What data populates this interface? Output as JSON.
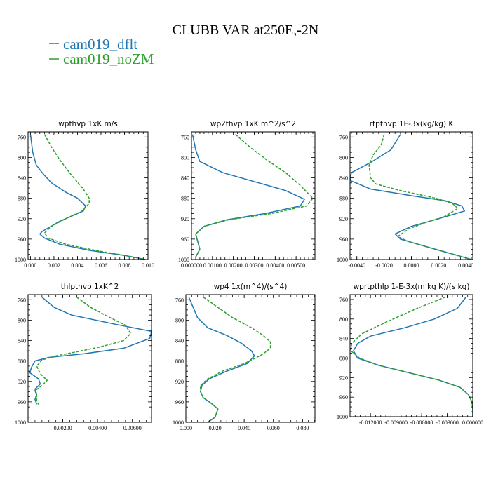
{
  "figure": {
    "title": "CLUBB VAR at250E,-2N",
    "legend": [
      {
        "label": "cam019_dflt",
        "color": "#1f77b4"
      },
      {
        "label": "cam019_noZM",
        "color": "#2ca02c"
      }
    ]
  },
  "chart_data": [
    {
      "type": "line",
      "title": "wpthvp   1xK m/s",
      "xlim": [
        -0.0002,
        0.01
      ],
      "ylim": [
        1000,
        750
      ],
      "xticks": [
        0.0,
        0.002,
        0.004,
        0.006,
        0.008,
        0.01
      ],
      "xtick_labels": [
        "0.000",
        "0.002",
        "0.004",
        "0.006",
        "0.008",
        "0.010"
      ],
      "yticks": [
        760,
        800,
        840,
        880,
        920,
        960,
        1000
      ],
      "series": [
        {
          "name": "cam019_dflt",
          "color": "#1f77b4",
          "dash": "",
          "points": [
            [
              0.0,
              755
            ],
            [
              0.0002,
              790
            ],
            [
              0.0005,
              815
            ],
            [
              0.001,
              830
            ],
            [
              0.0018,
              850
            ],
            [
              0.003,
              868
            ],
            [
              0.004,
              880
            ],
            [
              0.0047,
              895
            ],
            [
              0.0045,
              905
            ],
            [
              0.0025,
              925
            ],
            [
              0.001,
              945
            ],
            [
              0.0008,
              950
            ],
            [
              0.0012,
              958
            ],
            [
              0.0025,
              970
            ],
            [
              0.005,
              982
            ],
            [
              0.008,
              992
            ],
            [
              0.0098,
              1000
            ]
          ]
        },
        {
          "name": "cam019_noZM",
          "color": "#2ca02c",
          "dash": "4,2",
          "points": [
            [
              0.0012,
              755
            ],
            [
              0.0018,
              780
            ],
            [
              0.0025,
              805
            ],
            [
              0.0035,
              835
            ],
            [
              0.0045,
              862
            ],
            [
              0.005,
              880
            ],
            [
              0.005,
              890
            ],
            [
              0.0044,
              905
            ],
            [
              0.003,
              920
            ],
            [
              0.0018,
              935
            ],
            [
              0.0012,
              948
            ],
            [
              0.0015,
              958
            ],
            [
              0.003,
              970
            ],
            [
              0.0055,
              982
            ],
            [
              0.0085,
              994
            ],
            [
              0.0098,
              1000
            ]
          ]
        }
      ]
    },
    {
      "type": "line",
      "title": "wp2thvp   1xK m^2/s^2",
      "xlim": [
        0.0,
        0.0059
      ],
      "ylim": [
        1000,
        750
      ],
      "xticks": [
        0.0,
        0.001,
        0.002,
        0.003,
        0.004,
        0.005
      ],
      "xtick_labels": [
        "0.000000",
        "0.00100",
        "0.00200",
        "0.00300",
        "0.00400",
        "0.00500"
      ],
      "yticks": [
        760,
        800,
        840,
        880,
        920,
        960,
        1000
      ],
      "series": [
        {
          "name": "cam019_dflt",
          "color": "#1f77b4",
          "dash": "",
          "points": [
            [
              5e-05,
              755
            ],
            [
              0.0002,
              785
            ],
            [
              0.0004,
              808
            ],
            [
              0.0015,
              830
            ],
            [
              0.0028,
              845
            ],
            [
              0.0045,
              865
            ],
            [
              0.0054,
              882
            ],
            [
              0.0052,
              895
            ],
            [
              0.0035,
              910
            ],
            [
              0.0017,
              922
            ],
            [
              0.0006,
              935
            ],
            [
              0.0002,
              950
            ],
            [
              0.0003,
              965
            ],
            [
              0.0004,
              980
            ],
            [
              0.0002,
              995
            ]
          ]
        },
        {
          "name": "cam019_noZM",
          "color": "#2ca02c",
          "dash": "4,2",
          "points": [
            [
              0.0021,
              755
            ],
            [
              0.0028,
              780
            ],
            [
              0.0036,
              805
            ],
            [
              0.0045,
              830
            ],
            [
              0.0052,
              855
            ],
            [
              0.0058,
              880
            ],
            [
              0.0055,
              895
            ],
            [
              0.0038,
              910
            ],
            [
              0.0018,
              922
            ],
            [
              0.0006,
              935
            ],
            [
              0.0002,
              950
            ],
            [
              0.0003,
              965
            ],
            [
              0.0004,
              980
            ],
            [
              0.0002,
              995
            ]
          ]
        }
      ]
    },
    {
      "type": "line",
      "title": "rtpthvp   1E-3x(kg/kg) K",
      "xlim": [
        -0.0045,
        0.0045
      ],
      "ylim": [
        1000,
        750
      ],
      "xticks": [
        -0.004,
        -0.002,
        0.0,
        0.002,
        0.004
      ],
      "xtick_labels": [
        "-0.0040",
        "-0.0020",
        "0.0000",
        "0.0020",
        "0.0040"
      ],
      "yticks": [
        760,
        800,
        840,
        880,
        920,
        960,
        1000
      ],
      "series": [
        {
          "name": "cam019_dflt",
          "color": "#1f77b4",
          "dash": "",
          "points": [
            [
              -0.0008,
              755
            ],
            [
              -0.0015,
              785
            ],
            [
              -0.003,
              810
            ],
            [
              -0.0044,
              830
            ],
            [
              -0.0045,
              845
            ],
            [
              -0.003,
              862
            ],
            [
              0.0,
              875
            ],
            [
              0.0025,
              885
            ],
            [
              0.0037,
              895
            ],
            [
              0.0039,
              905
            ],
            [
              0.002,
              920
            ],
            [
              0.0,
              935
            ],
            [
              -0.0012,
              950
            ],
            [
              -0.0008,
              960
            ],
            [
              0.0015,
              978
            ],
            [
              0.0035,
              993
            ],
            [
              0.0044,
              1000
            ]
          ]
        },
        {
          "name": "cam019_noZM",
          "color": "#2ca02c",
          "dash": "4,2",
          "points": [
            [
              -0.002,
              755
            ],
            [
              -0.0022,
              775
            ],
            [
              -0.0028,
              795
            ],
            [
              -0.0031,
              815
            ],
            [
              -0.003,
              840
            ],
            [
              -0.0026,
              852
            ],
            [
              -0.0008,
              865
            ],
            [
              0.0018,
              880
            ],
            [
              0.003,
              890
            ],
            [
              0.0034,
              900
            ],
            [
              0.0025,
              915
            ],
            [
              0.001,
              928
            ],
            [
              -0.0002,
              940
            ],
            [
              -0.001,
              955
            ],
            [
              -0.0002,
              965
            ],
            [
              0.0018,
              980
            ],
            [
              0.0035,
              993
            ],
            [
              0.0044,
              1000
            ]
          ]
        }
      ]
    },
    {
      "type": "line",
      "title": "thlpthvp   1xK^2",
      "xlim": [
        0.0,
        0.0071
      ],
      "ylim": [
        1000,
        750
      ],
      "xticks": [
        0.002,
        0.004,
        0.006
      ],
      "xtick_labels": [
        "0.00200",
        "0.00400",
        "0.00600"
      ],
      "yticks": [
        760,
        800,
        840,
        880,
        920,
        960,
        1000
      ],
      "series": [
        {
          "name": "cam019_dflt",
          "color": "#1f77b4",
          "dash": "",
          "points": [
            [
              0.0008,
              755
            ],
            [
              0.0015,
              775
            ],
            [
              0.0025,
              790
            ],
            [
              0.005,
              808
            ],
            [
              0.0071,
              822
            ],
            [
              0.007,
              836
            ],
            [
              0.0055,
              855
            ],
            [
              0.0032,
              866
            ],
            [
              0.0012,
              873
            ],
            [
              0.0004,
              880
            ],
            [
              0.0002,
              892
            ],
            [
              0.0001,
              903
            ],
            [
              0.0006,
              915
            ],
            [
              0.0007,
              925
            ],
            [
              0.0004,
              935
            ],
            [
              0.0005,
              945
            ],
            [
              0.0004,
              955
            ],
            [
              0.0005,
              965
            ]
          ]
        },
        {
          "name": "cam019_noZM",
          "color": "#2ca02c",
          "dash": "4,2",
          "points": [
            [
              0.0028,
              755
            ],
            [
              0.0036,
              775
            ],
            [
              0.0046,
              793
            ],
            [
              0.0056,
              810
            ],
            [
              0.0059,
              826
            ],
            [
              0.0055,
              840
            ],
            [
              0.0042,
              852
            ],
            [
              0.0028,
              862
            ],
            [
              0.0016,
              870
            ],
            [
              0.0008,
              878
            ],
            [
              0.0005,
              890
            ],
            [
              0.0007,
              905
            ],
            [
              0.0011,
              918
            ],
            [
              0.0008,
              928
            ],
            [
              0.0004,
              938
            ],
            [
              0.0005,
              948
            ],
            [
              0.0005,
              958
            ],
            [
              0.0006,
              965
            ]
          ]
        }
      ]
    },
    {
      "type": "line",
      "title": "wp4   1x(m^4)/(s^4)",
      "xlim": [
        0.0,
        0.0885
      ],
      "ylim": [
        1000,
        750
      ],
      "xticks": [
        0.0,
        0.02,
        0.04,
        0.06,
        0.08
      ],
      "xtick_labels": [
        "0.000",
        "0.020",
        "0.040",
        "0.060",
        "0.080"
      ],
      "yticks": [
        760,
        800,
        840,
        880,
        920,
        960,
        1000
      ],
      "series": [
        {
          "name": "cam019_dflt",
          "color": "#1f77b4",
          "dash": "",
          "points": [
            [
              0.002,
              755
            ],
            [
              0.005,
              775
            ],
            [
              0.008,
              795
            ],
            [
              0.015,
              815
            ],
            [
              0.028,
              830
            ],
            [
              0.038,
              845
            ],
            [
              0.045,
              860
            ],
            [
              0.047,
              870
            ],
            [
              0.042,
              885
            ],
            [
              0.028,
              900
            ],
            [
              0.016,
              915
            ],
            [
              0.011,
              928
            ],
            [
              0.01,
              940
            ],
            [
              0.012,
              952
            ],
            [
              0.017,
              962
            ],
            [
              0.022,
              974
            ],
            [
              0.02,
              990
            ],
            [
              0.015,
              1000
            ]
          ]
        },
        {
          "name": "cam019_noZM",
          "color": "#2ca02c",
          "dash": "4,2",
          "points": [
            [
              0.012,
              755
            ],
            [
              0.022,
              775
            ],
            [
              0.032,
              795
            ],
            [
              0.045,
              815
            ],
            [
              0.053,
              830
            ],
            [
              0.058,
              843
            ],
            [
              0.058,
              855
            ],
            [
              0.052,
              868
            ],
            [
              0.04,
              885
            ],
            [
              0.025,
              900
            ],
            [
              0.015,
              915
            ],
            [
              0.01,
              928
            ],
            [
              0.01,
              940
            ],
            [
              0.012,
              952
            ],
            [
              0.017,
              962
            ],
            [
              0.022,
              974
            ],
            [
              0.02,
              990
            ],
            [
              0.015,
              1000
            ]
          ]
        }
      ]
    },
    {
      "type": "line",
      "title": "wprtpthlp   1-E-3x(m kg K)/(s kg)",
      "xlim": [
        -0.0144,
        0.0
      ],
      "ylim": [
        1000,
        750
      ],
      "xticks": [
        -0.012,
        -0.009,
        -0.006,
        -0.003,
        0.0
      ],
      "xtick_labels": [
        "-0.012000",
        "-0.009000",
        "-0.006000",
        "-0.003000",
        "0.000000"
      ],
      "yticks": [
        760,
        800,
        840,
        880,
        920,
        960,
        1000
      ],
      "series": [
        {
          "name": "cam019_dflt",
          "color": "#1f77b4",
          "dash": "",
          "points": [
            [
              -0.0008,
              755
            ],
            [
              -0.0018,
              778
            ],
            [
              -0.0045,
              800
            ],
            [
              -0.008,
              818
            ],
            [
              -0.012,
              835
            ],
            [
              -0.0135,
              850
            ],
            [
              -0.014,
              865
            ],
            [
              -0.0135,
              880
            ],
            [
              -0.011,
              895
            ],
            [
              -0.0075,
              910
            ],
            [
              -0.004,
              925
            ],
            [
              -0.0015,
              940
            ],
            [
              -0.0005,
              955
            ],
            [
              -0.0001,
              970
            ],
            [
              0.0,
              985
            ],
            [
              0.0,
              1000
            ]
          ]
        },
        {
          "name": "cam019_noZM",
          "color": "#2ca02c",
          "dash": "4,2",
          "points": [
            [
              -0.0032,
              755
            ],
            [
              -0.0065,
              778
            ],
            [
              -0.01,
              805
            ],
            [
              -0.013,
              830
            ],
            [
              -0.0142,
              850
            ],
            [
              -0.0143,
              865
            ],
            [
              -0.0133,
              880
            ],
            [
              -0.011,
              895
            ],
            [
              -0.0075,
              910
            ],
            [
              -0.004,
              925
            ],
            [
              -0.0015,
              940
            ],
            [
              -0.0005,
              955
            ],
            [
              -0.0001,
              970
            ],
            [
              0.0,
              985
            ],
            [
              0.0,
              1000
            ]
          ]
        }
      ]
    }
  ]
}
